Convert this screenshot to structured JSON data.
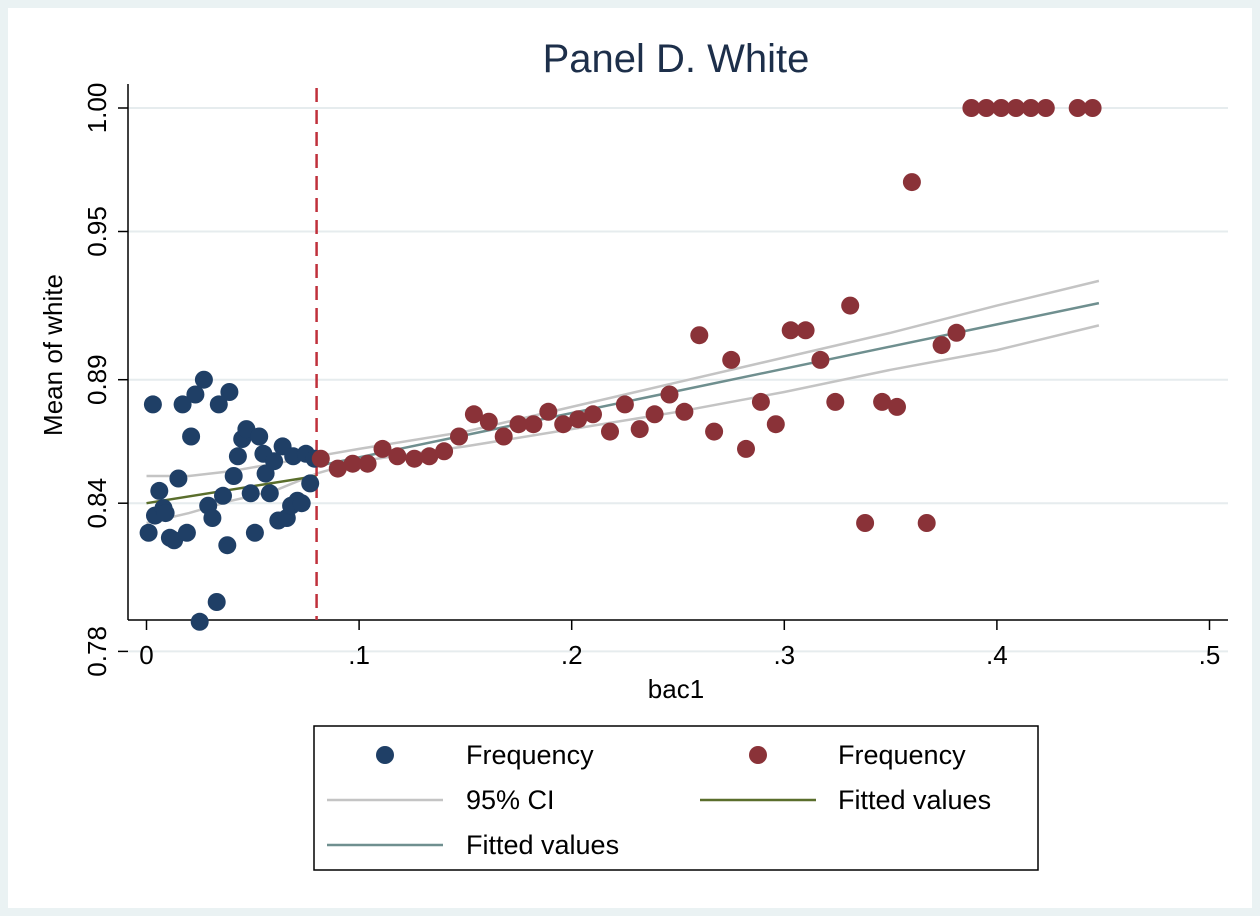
{
  "chart_data": {
    "type": "scatter",
    "title": "Panel D. White",
    "xlabel": "bac1",
    "ylabel": "Mean of white",
    "xlim": [
      -0.005,
      0.51
    ],
    "ylim": [
      0.775,
      1.005
    ],
    "x_ticks": [
      0,
      0.1,
      0.2,
      0.3,
      0.4,
      0.5
    ],
    "x_tick_labels": [
      "0",
      ".1",
      ".2",
      ".3",
      ".4",
      ".5"
    ],
    "y_ticks": [
      0.78,
      0.84,
      0.89,
      0.95,
      1.0
    ],
    "y_tick_labels": [
      "0.78",
      "0.84",
      "0.89",
      "0.95",
      "1.00"
    ],
    "grid": true,
    "cutoff_line": {
      "x": 0.08,
      "color": "#c0303b",
      "style": "dashed"
    },
    "series": [
      {
        "name": "Frequency",
        "kind": "scatter",
        "color": "#1f3f66",
        "points": [
          [
            0.001,
            0.828
          ],
          [
            0.003,
            0.88
          ],
          [
            0.004,
            0.835
          ],
          [
            0.006,
            0.845
          ],
          [
            0.008,
            0.838
          ],
          [
            0.009,
            0.836
          ],
          [
            0.011,
            0.826
          ],
          [
            0.013,
            0.825
          ],
          [
            0.015,
            0.85
          ],
          [
            0.017,
            0.88
          ],
          [
            0.019,
            0.828
          ],
          [
            0.021,
            0.867
          ],
          [
            0.023,
            0.884
          ],
          [
            0.025,
            0.792
          ],
          [
            0.027,
            0.89
          ],
          [
            0.029,
            0.839
          ],
          [
            0.031,
            0.834
          ],
          [
            0.033,
            0.8
          ],
          [
            0.034,
            0.88
          ],
          [
            0.036,
            0.843
          ],
          [
            0.038,
            0.823
          ],
          [
            0.039,
            0.885
          ],
          [
            0.041,
            0.851
          ],
          [
            0.043,
            0.859
          ],
          [
            0.045,
            0.866
          ],
          [
            0.047,
            0.87
          ],
          [
            0.049,
            0.844
          ],
          [
            0.051,
            0.828
          ],
          [
            0.053,
            0.867
          ],
          [
            0.055,
            0.86
          ],
          [
            0.056,
            0.852
          ],
          [
            0.058,
            0.844
          ],
          [
            0.06,
            0.857
          ],
          [
            0.062,
            0.833
          ],
          [
            0.064,
            0.863
          ],
          [
            0.066,
            0.834
          ],
          [
            0.068,
            0.839
          ],
          [
            0.069,
            0.859
          ],
          [
            0.071,
            0.841
          ],
          [
            0.073,
            0.84
          ],
          [
            0.075,
            0.86
          ],
          [
            0.077,
            0.848
          ],
          [
            0.079,
            0.858
          ]
        ]
      },
      {
        "name": "Frequency",
        "kind": "scatter",
        "color": "#8a3238",
        "points": [
          [
            0.082,
            0.858
          ],
          [
            0.09,
            0.854
          ],
          [
            0.097,
            0.856
          ],
          [
            0.104,
            0.856
          ],
          [
            0.111,
            0.862
          ],
          [
            0.118,
            0.859
          ],
          [
            0.126,
            0.858
          ],
          [
            0.133,
            0.859
          ],
          [
            0.14,
            0.861
          ],
          [
            0.147,
            0.867
          ],
          [
            0.154,
            0.876
          ],
          [
            0.161,
            0.873
          ],
          [
            0.168,
            0.867
          ],
          [
            0.175,
            0.872
          ],
          [
            0.182,
            0.872
          ],
          [
            0.189,
            0.877
          ],
          [
            0.196,
            0.872
          ],
          [
            0.203,
            0.874
          ],
          [
            0.21,
            0.876
          ],
          [
            0.218,
            0.869
          ],
          [
            0.225,
            0.88
          ],
          [
            0.232,
            0.87
          ],
          [
            0.239,
            0.876
          ],
          [
            0.246,
            0.884
          ],
          [
            0.253,
            0.877
          ],
          [
            0.26,
            0.908
          ],
          [
            0.267,
            0.869
          ],
          [
            0.275,
            0.898
          ],
          [
            0.282,
            0.862
          ],
          [
            0.289,
            0.881
          ],
          [
            0.296,
            0.872
          ],
          [
            0.303,
            0.91
          ],
          [
            0.31,
            0.91
          ],
          [
            0.317,
            0.898
          ],
          [
            0.324,
            0.881
          ],
          [
            0.331,
            0.92
          ],
          [
            0.338,
            0.832
          ],
          [
            0.346,
            0.881
          ],
          [
            0.353,
            0.879
          ],
          [
            0.36,
            0.97
          ],
          [
            0.367,
            0.832
          ],
          [
            0.374,
            0.904
          ],
          [
            0.381,
            0.909
          ],
          [
            0.388,
            1.0
          ],
          [
            0.395,
            1.0
          ],
          [
            0.402,
            1.0
          ],
          [
            0.409,
            1.0
          ],
          [
            0.416,
            1.0
          ],
          [
            0.423,
            1.0
          ],
          [
            0.438,
            1.0
          ],
          [
            0.445,
            1.0
          ]
        ]
      },
      {
        "name": "95% CI",
        "kind": "ci",
        "color": "#c4c4c4",
        "upper": [
          [
            0.0,
            0.851
          ],
          [
            0.02,
            0.851
          ],
          [
            0.04,
            0.853
          ],
          [
            0.06,
            0.856
          ],
          [
            0.08,
            0.859
          ],
          [
            0.1,
            0.862
          ],
          [
            0.15,
            0.869
          ],
          [
            0.2,
            0.879
          ],
          [
            0.25,
            0.889
          ],
          [
            0.3,
            0.899
          ],
          [
            0.35,
            0.909
          ],
          [
            0.4,
            0.92
          ],
          [
            0.448,
            0.93
          ]
        ],
        "lower": [
          [
            0.0,
            0.832
          ],
          [
            0.02,
            0.836
          ],
          [
            0.04,
            0.841
          ],
          [
            0.06,
            0.845
          ],
          [
            0.08,
            0.852
          ],
          [
            0.1,
            0.857
          ],
          [
            0.15,
            0.863
          ],
          [
            0.2,
            0.87
          ],
          [
            0.25,
            0.877
          ],
          [
            0.3,
            0.885
          ],
          [
            0.35,
            0.894
          ],
          [
            0.4,
            0.902
          ],
          [
            0.448,
            0.912
          ]
        ]
      },
      {
        "name": "Fitted values",
        "kind": "line",
        "color": "#5a6e2c",
        "points": [
          [
            0.0,
            0.84
          ],
          [
            0.08,
            0.851
          ]
        ]
      },
      {
        "name": "Fitted values",
        "kind": "line",
        "color": "#6f8f8f",
        "points": [
          [
            0.08,
            0.855
          ],
          [
            0.448,
            0.921
          ]
        ]
      }
    ],
    "legend": {
      "position": "bottom",
      "entries": [
        {
          "label": "Frequency",
          "symbol": "dot",
          "color": "#1f3f66"
        },
        {
          "label": "Frequency",
          "symbol": "dot",
          "color": "#8a3238"
        },
        {
          "label": "95% CI",
          "symbol": "line",
          "color": "#c4c4c4"
        },
        {
          "label": "Fitted values",
          "symbol": "line",
          "color": "#5a6e2c"
        },
        {
          "label": "Fitted values",
          "symbol": "line",
          "color": "#6f8f8f"
        }
      ]
    }
  }
}
